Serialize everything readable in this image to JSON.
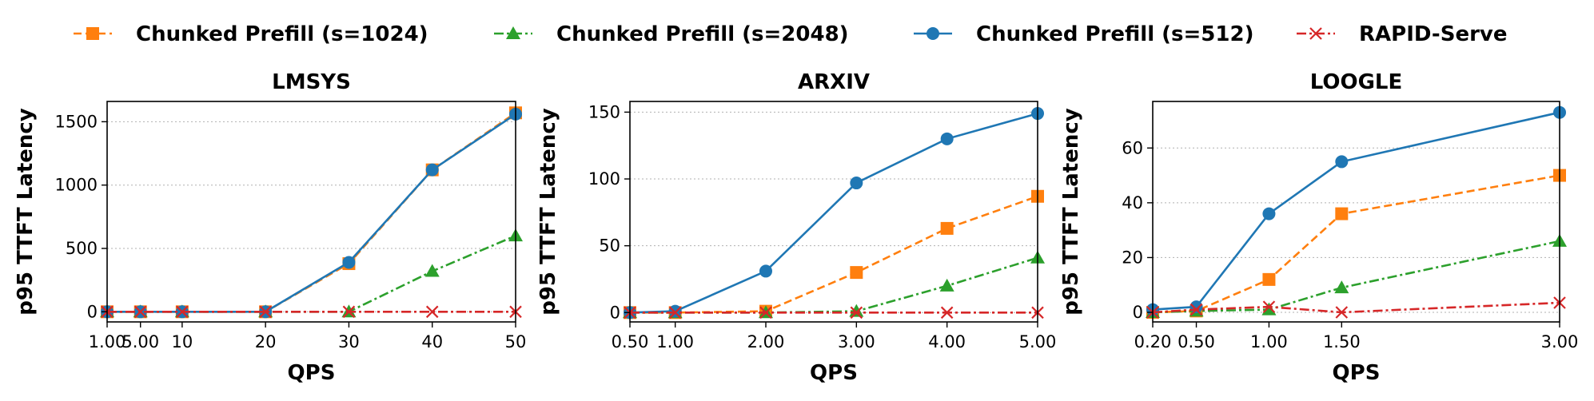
{
  "chart_data": [
    {
      "type": "line",
      "title": "LMSYS",
      "xlabel": "QPS",
      "ylabel": "p95 TTFT Latency",
      "xlim": [
        1,
        50
      ],
      "ylim": [
        -80,
        1660
      ],
      "xticks": [
        1,
        5,
        10,
        20,
        30,
        40,
        50
      ],
      "xtick_labels": [
        "1.00",
        "5.00",
        "10",
        "20",
        "30",
        "40",
        "50"
      ],
      "yticks": [
        0,
        500,
        1000,
        1500
      ],
      "ytick_labels": [
        "0",
        "500",
        "1000",
        "1500"
      ],
      "grid": "y",
      "x": [
        1,
        5,
        10,
        20,
        30,
        40,
        50
      ],
      "series": [
        {
          "name": "Chunked Prefill (s=1024)",
          "values": [
            0,
            0,
            0,
            0,
            380,
            1120,
            1570
          ]
        },
        {
          "name": "Chunked Prefill (s=2048)",
          "values": [
            0,
            0,
            0,
            0,
            0,
            320,
            600
          ]
        },
        {
          "name": "Chunked Prefill (s=512)",
          "values": [
            0,
            0,
            0,
            0,
            390,
            1120,
            1560
          ]
        },
        {
          "name": "RAPID-Serve",
          "values": [
            0,
            0,
            0,
            0,
            0,
            0,
            0
          ]
        }
      ]
    },
    {
      "type": "line",
      "title": "ARXIV",
      "xlabel": "QPS",
      "ylabel": "p95 TTFT Latency",
      "xlim": [
        0.5,
        5
      ],
      "ylim": [
        -7,
        158
      ],
      "xticks": [
        0.5,
        1,
        2,
        3,
        4,
        5
      ],
      "xtick_labels": [
        "0.50",
        "1.00",
        "2.00",
        "3.00",
        "4.00",
        "5.00"
      ],
      "yticks": [
        0,
        50,
        100,
        150
      ],
      "ytick_labels": [
        "0",
        "50",
        "100",
        "150"
      ],
      "grid": "y",
      "x": [
        0.5,
        1,
        2,
        3,
        4,
        5
      ],
      "series": [
        {
          "name": "Chunked Prefill (s=1024)",
          "values": [
            0,
            0,
            1,
            30,
            63,
            87
          ]
        },
        {
          "name": "Chunked Prefill (s=2048)",
          "values": [
            0,
            0,
            0,
            1,
            20,
            41
          ]
        },
        {
          "name": "Chunked Prefill (s=512)",
          "values": [
            0,
            1,
            31,
            97,
            130,
            149
          ]
        },
        {
          "name": "RAPID-Serve",
          "values": [
            0,
            0,
            0,
            0,
            0,
            0
          ]
        }
      ]
    },
    {
      "type": "line",
      "title": "LOOGLE",
      "xlabel": "QPS",
      "ylabel": "p95 TTFT Latency",
      "xlim": [
        0.2,
        3
      ],
      "ylim": [
        -3.5,
        77
      ],
      "xticks": [
        0.2,
        0.5,
        1,
        1.5,
        3
      ],
      "xtick_labels": [
        "0.20",
        "0.50",
        "1.00",
        "1.50",
        "3.00"
      ],
      "yticks": [
        0,
        20,
        40,
        60
      ],
      "ytick_labels": [
        "0",
        "20",
        "40",
        "60"
      ],
      "grid": "y",
      "x": [
        0.2,
        0.5,
        1,
        1.5,
        3
      ],
      "series": [
        {
          "name": "Chunked Prefill (s=1024)",
          "values": [
            0,
            0.5,
            12,
            36,
            50
          ]
        },
        {
          "name": "Chunked Prefill (s=2048)",
          "values": [
            0,
            0.5,
            1,
            9,
            26
          ]
        },
        {
          "name": "Chunked Prefill (s=512)",
          "values": [
            1,
            2,
            36,
            55,
            73
          ]
        },
        {
          "name": "RAPID-Serve",
          "values": [
            0,
            1,
            2,
            0,
            3.5
          ]
        }
      ]
    }
  ],
  "legend": {
    "placement": "top-center",
    "entries": [
      {
        "name": "Chunked Prefill (s=1024)",
        "color": "#ff7f0e",
        "marker": "square",
        "linestyle": "dashed"
      },
      {
        "name": "Chunked Prefill (s=2048)",
        "color": "#2ca02c",
        "marker": "triangle",
        "linestyle": "dashdot"
      },
      {
        "name": "Chunked Prefill (s=512)",
        "color": "#1f77b4",
        "marker": "circle",
        "linestyle": "solid"
      },
      {
        "name": "RAPID-Serve",
        "color": "#d62728",
        "marker": "x",
        "linestyle": "dashdot"
      }
    ]
  }
}
